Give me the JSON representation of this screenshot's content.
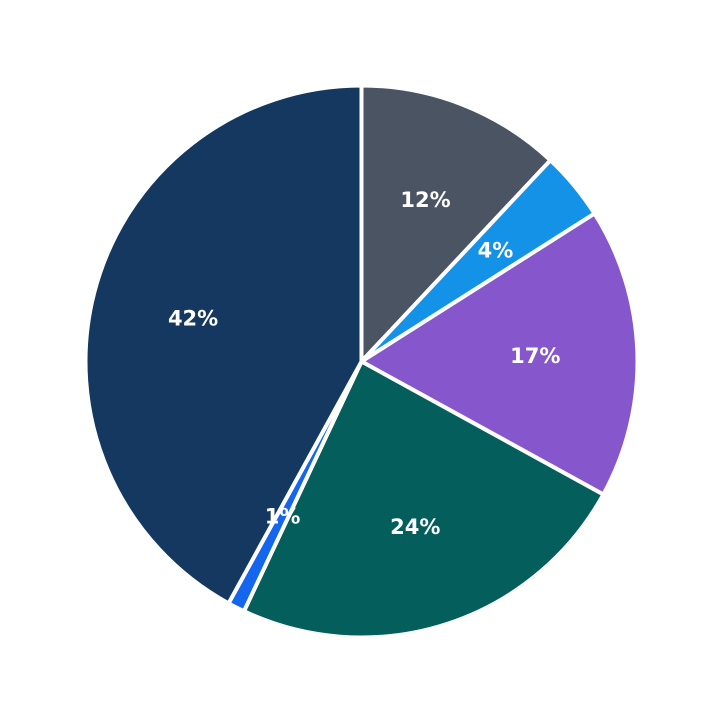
{
  "chart_data": {
    "type": "pie",
    "start_angle": "12 o'clock",
    "direction": "clockwise",
    "legend": "none",
    "slices": [
      {
        "value": 12,
        "label": "12%",
        "color": "#4a5462"
      },
      {
        "value": 4,
        "label": "4%",
        "color": "#1492e8"
      },
      {
        "value": 17,
        "label": "17%",
        "color": "#8657cc"
      },
      {
        "value": 24,
        "label": "24%",
        "color": "#035e5c"
      },
      {
        "value": 1,
        "label": "1%",
        "color": "#1466ee"
      },
      {
        "value": 42,
        "label": "42%",
        "color": "#14385f"
      }
    ]
  }
}
